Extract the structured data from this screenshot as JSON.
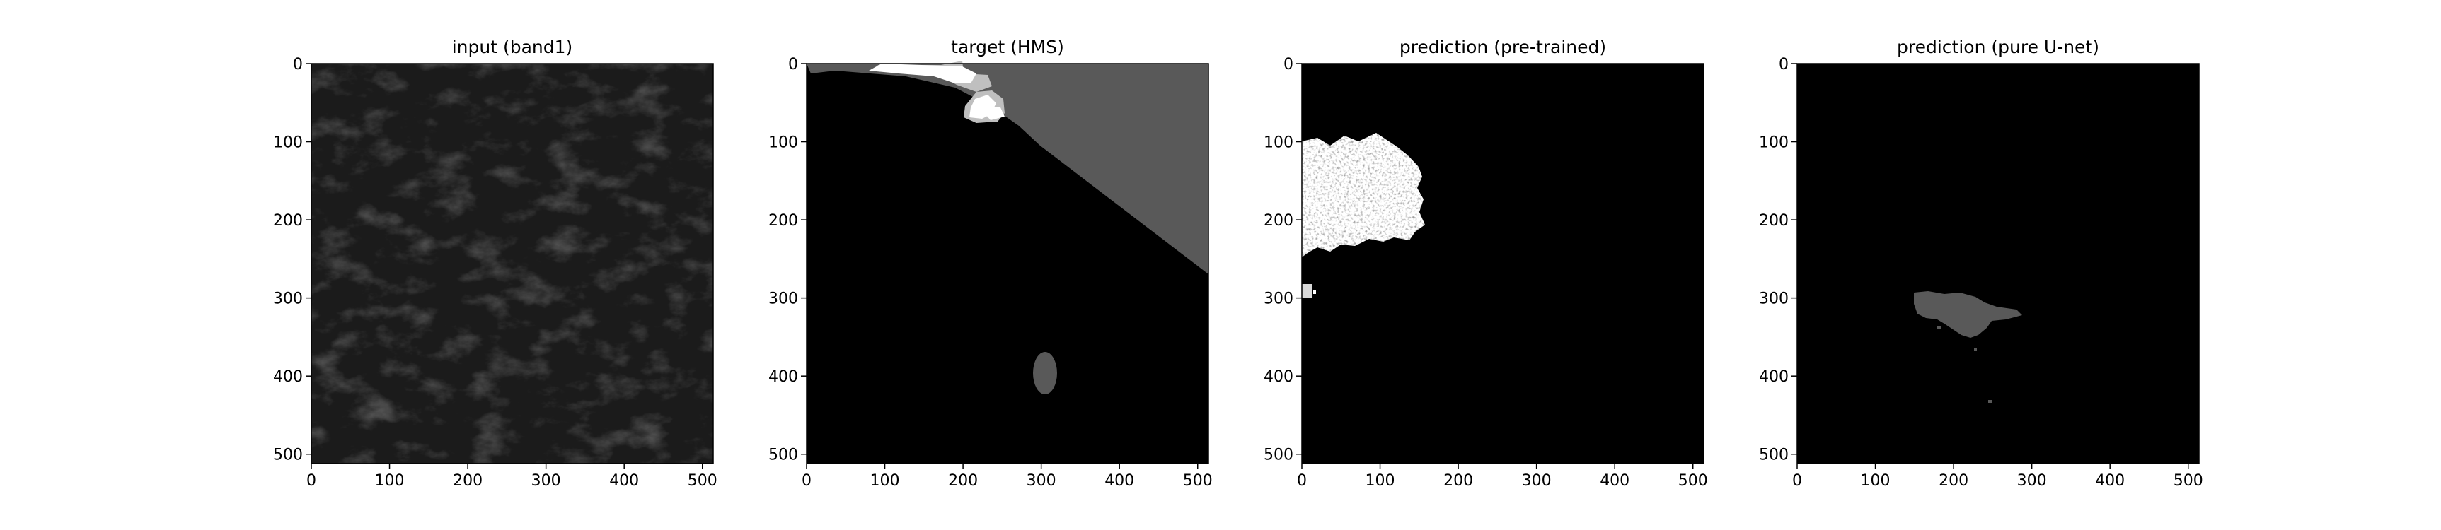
{
  "figure": {
    "panels": [
      {
        "id": "input",
        "title": "input (band1)",
        "x_ticks": [
          "0",
          "100",
          "200",
          "300",
          "400",
          "500"
        ],
        "y_ticks": [
          "0",
          "100",
          "200",
          "300",
          "400",
          "500"
        ],
        "content": "grayscale satellite image"
      },
      {
        "id": "target",
        "title": "target (HMS)",
        "x_ticks": [
          "0",
          "100",
          "200",
          "300",
          "400",
          "500"
        ],
        "y_ticks": [
          "0",
          "100",
          "200",
          "300",
          "400",
          "500"
        ],
        "content": "segmentation mask"
      },
      {
        "id": "pretrained",
        "title": "prediction (pre-trained)",
        "x_ticks": [
          "0",
          "100",
          "200",
          "300",
          "400",
          "500"
        ],
        "y_ticks": [
          "0",
          "100",
          "200",
          "300",
          "400",
          "500"
        ],
        "content": "segmentation mask"
      },
      {
        "id": "unet",
        "title": "prediction (pure U-net)",
        "x_ticks": [
          "0",
          "100",
          "200",
          "300",
          "400",
          "500"
        ],
        "y_ticks": [
          "0",
          "100",
          "200",
          "300",
          "400",
          "500"
        ],
        "content": "segmentation mask"
      }
    ],
    "colors": {
      "background": "#ffffff",
      "black": "#000000",
      "mask_gray": "#595959",
      "mask_light": "#bfbfbf",
      "mask_white": "#ffffff",
      "input_dark": "#1f1f1f"
    }
  }
}
